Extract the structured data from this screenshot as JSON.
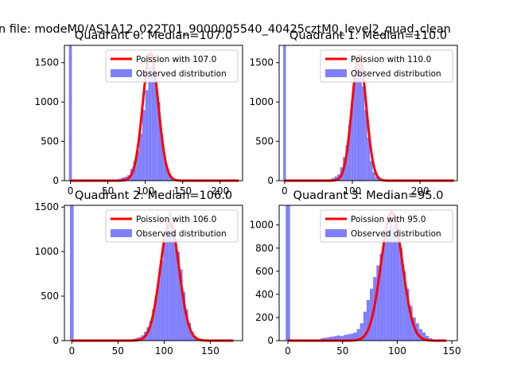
{
  "suptitle": "n file: modeM0/AS1A12_022T01_9000005540_40425cztM0_level2_quad_clean",
  "colors": {
    "hist": "#8080ff",
    "fit": "#ff0000",
    "zero_bar": "#8080ff"
  },
  "chart_data": [
    {
      "type": "bar",
      "title": "Quadrant 0: Median=107.0",
      "xlim": [
        -8,
        230
      ],
      "ylim": [
        0,
        1720
      ],
      "xticks": [
        0,
        50,
        100,
        150,
        200
      ],
      "yticks": [
        0,
        500,
        1000,
        1500
      ],
      "legend": {
        "placement": "top-right",
        "entries": [
          "Poission with 107.0",
          "Observed distribution"
        ]
      },
      "median": 107,
      "zero_bar_height": 1720,
      "bin_width": 4,
      "hist": [
        [
          60,
          10
        ],
        [
          64,
          25
        ],
        [
          68,
          40
        ],
        [
          72,
          50
        ],
        [
          76,
          70
        ],
        [
          80,
          150
        ],
        [
          84,
          250
        ],
        [
          88,
          380
        ],
        [
          92,
          600
        ],
        [
          96,
          900
        ],
        [
          100,
          1150
        ],
        [
          104,
          1450
        ],
        [
          108,
          1600
        ],
        [
          112,
          1350
        ],
        [
          116,
          1000
        ],
        [
          120,
          600
        ],
        [
          124,
          300
        ],
        [
          128,
          150
        ],
        [
          132,
          60
        ],
        [
          136,
          25
        ],
        [
          140,
          10
        ]
      ],
      "fit_x": [
        0,
        225
      ],
      "fit_peak": 1620
    },
    {
      "type": "bar",
      "title": "Quadrant 1: Median=110.0",
      "xlim": [
        -8,
        255
      ],
      "ylim": [
        0,
        1720
      ],
      "xticks": [
        0,
        100,
        200
      ],
      "yticks": [
        0,
        500,
        1000,
        1500
      ],
      "legend": {
        "placement": "top-right",
        "entries": [
          "Poission with 110.0",
          "Observed distribution"
        ]
      },
      "median": 110,
      "zero_bar_height": 1720,
      "bin_width": 4,
      "hist": [
        [
          62,
          10
        ],
        [
          66,
          20
        ],
        [
          70,
          35
        ],
        [
          74,
          55
        ],
        [
          78,
          80
        ],
        [
          82,
          170
        ],
        [
          86,
          300
        ],
        [
          90,
          450
        ],
        [
          94,
          700
        ],
        [
          98,
          1000
        ],
        [
          102,
          1350
        ],
        [
          106,
          1600
        ],
        [
          110,
          1480
        ],
        [
          114,
          1200
        ],
        [
          118,
          900
        ],
        [
          122,
          550
        ],
        [
          126,
          250
        ],
        [
          130,
          110
        ],
        [
          134,
          50
        ],
        [
          138,
          20
        ],
        [
          142,
          10
        ]
      ],
      "fit_x": [
        0,
        250
      ],
      "fit_peak": 1590
    },
    {
      "type": "bar",
      "title": "Quadrant 2: Median=106.0",
      "xlim": [
        -8,
        185
      ],
      "ylim": [
        0,
        1520
      ],
      "xticks": [
        0,
        50,
        100,
        150
      ],
      "yticks": [
        0,
        500,
        1000,
        1500
      ],
      "legend": {
        "placement": "top-right",
        "entries": [
          "Poission with 106.0",
          "Observed distribution"
        ]
      },
      "median": 106,
      "zero_bar_height": 1520,
      "bin_width": 3,
      "hist": [
        [
          60,
          5
        ],
        [
          63,
          10
        ],
        [
          66,
          20
        ],
        [
          69,
          30
        ],
        [
          72,
          40
        ],
        [
          75,
          60
        ],
        [
          78,
          100
        ],
        [
          81,
          150
        ],
        [
          84,
          220
        ],
        [
          87,
          350
        ],
        [
          90,
          500
        ],
        [
          93,
          700
        ],
        [
          96,
          900
        ],
        [
          99,
          1100
        ],
        [
          102,
          1350
        ],
        [
          105,
          1450
        ],
        [
          108,
          1300
        ],
        [
          111,
          1150
        ],
        [
          114,
          1000
        ],
        [
          117,
          800
        ],
        [
          120,
          550
        ],
        [
          123,
          350
        ],
        [
          126,
          200
        ],
        [
          129,
          100
        ],
        [
          132,
          50
        ],
        [
          135,
          20
        ],
        [
          138,
          8
        ]
      ],
      "fit_x": [
        0,
        175
      ],
      "fit_peak": 1330
    },
    {
      "type": "bar",
      "title": "Quadrant 3: Median=95.0",
      "xlim": [
        -8,
        155
      ],
      "ylim": [
        0,
        1170
      ],
      "xticks": [
        0,
        50,
        100,
        150
      ],
      "yticks": [
        0,
        200,
        400,
        600,
        800,
        1000
      ],
      "legend": {
        "placement": "top-right",
        "entries": [
          "Poission with 95.0",
          "Observed distribution"
        ]
      },
      "median": 95,
      "zero_bar_height": 1170,
      "bin_width": 3,
      "hist": [
        [
          30,
          20
        ],
        [
          33,
          25
        ],
        [
          36,
          30
        ],
        [
          39,
          35
        ],
        [
          42,
          40
        ],
        [
          45,
          45
        ],
        [
          48,
          40
        ],
        [
          51,
          50
        ],
        [
          54,
          55
        ],
        [
          57,
          60
        ],
        [
          60,
          70
        ],
        [
          63,
          100
        ],
        [
          66,
          150
        ],
        [
          69,
          250
        ],
        [
          72,
          350
        ],
        [
          75,
          450
        ],
        [
          78,
          550
        ],
        [
          81,
          650
        ],
        [
          84,
          750
        ],
        [
          87,
          850
        ],
        [
          90,
          950
        ],
        [
          93,
          1050
        ],
        [
          96,
          1000
        ],
        [
          99,
          900
        ],
        [
          102,
          800
        ],
        [
          105,
          600
        ],
        [
          108,
          450
        ],
        [
          111,
          300
        ],
        [
          114,
          200
        ],
        [
          117,
          150
        ],
        [
          120,
          100
        ],
        [
          123,
          70
        ],
        [
          126,
          40
        ],
        [
          129,
          20
        ],
        [
          132,
          10
        ]
      ],
      "fit_x": [
        0,
        145
      ],
      "fit_peak": 1110
    }
  ]
}
